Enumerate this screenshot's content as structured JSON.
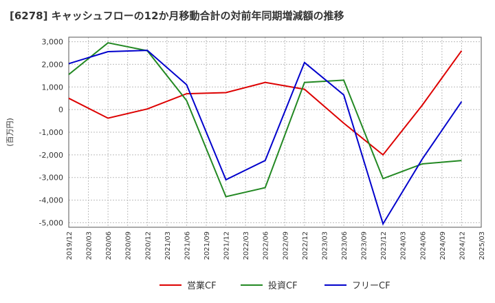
{
  "chart_data": {
    "type": "line",
    "title": "[6278]  キャッシュフローの12か月移動合計の対前年同期増減額の推移",
    "ylabel": "(百万円)",
    "xlabel": "",
    "ylim": [
      -5200,
      3200
    ],
    "yticks": [
      3000,
      2000,
      1000,
      0,
      -1000,
      -2000,
      -3000,
      -4000,
      -5000
    ],
    "ytick_labels": [
      "3,000",
      "2,000",
      "1,000",
      "0",
      "-1,000",
      "-2,000",
      "-3,000",
      "-4,000",
      "-5,000"
    ],
    "x": [
      "2019/12",
      "2020/03",
      "2020/06",
      "2020/09",
      "2020/12",
      "2021/03",
      "2021/06",
      "2021/09",
      "2021/12",
      "2022/03",
      "2022/06",
      "2022/09",
      "2022/12",
      "2023/03",
      "2023/06",
      "2023/09",
      "2023/12",
      "2024/03",
      "2024/06",
      "2024/09",
      "2024/12",
      "2025/03"
    ],
    "grid": true,
    "legend_position": "bottom",
    "series": [
      {
        "name": "営業CF",
        "color": "#dd0000",
        "points": [
          [
            "2019/12",
            500
          ],
          [
            "2020/06",
            -380
          ],
          [
            "2020/12",
            30
          ],
          [
            "2021/06",
            700
          ],
          [
            "2021/12",
            750
          ],
          [
            "2022/06",
            1200
          ],
          [
            "2022/12",
            900
          ],
          [
            "2023/06",
            -600
          ],
          [
            "2023/12",
            -2000
          ],
          [
            "2024/06",
            200
          ],
          [
            "2024/12",
            2600
          ]
        ]
      },
      {
        "name": "投資CF",
        "color": "#228822",
        "points": [
          [
            "2019/12",
            1550
          ],
          [
            "2020/06",
            2950
          ],
          [
            "2020/12",
            2600
          ],
          [
            "2021/06",
            400
          ],
          [
            "2021/12",
            -3850
          ],
          [
            "2022/06",
            -3450
          ],
          [
            "2022/12",
            1200
          ],
          [
            "2023/06",
            1300
          ],
          [
            "2023/12",
            -3050
          ],
          [
            "2024/06",
            -2400
          ],
          [
            "2024/12",
            -2250
          ]
        ]
      },
      {
        "name": "フリーCF",
        "color": "#0000cc",
        "points": [
          [
            "2019/12",
            2030
          ],
          [
            "2020/06",
            2560
          ],
          [
            "2020/12",
            2620
          ],
          [
            "2021/06",
            1100
          ],
          [
            "2021/12",
            -3100
          ],
          [
            "2022/06",
            -2250
          ],
          [
            "2022/12",
            2080
          ],
          [
            "2023/06",
            650
          ],
          [
            "2023/12",
            -5050
          ],
          [
            "2024/06",
            -2180
          ],
          [
            "2024/12",
            350
          ]
        ]
      }
    ]
  }
}
